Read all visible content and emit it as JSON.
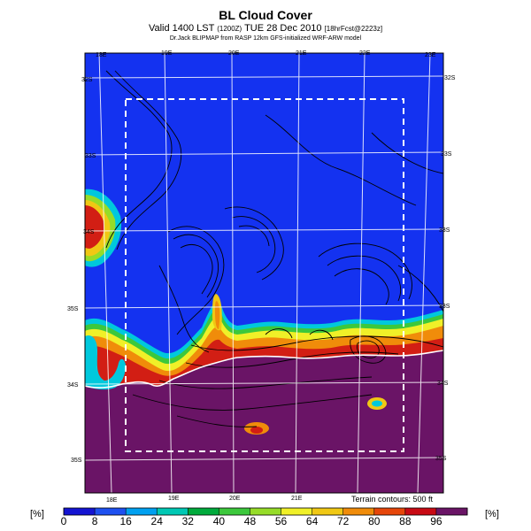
{
  "title": "BL Cloud Cover",
  "subtitle": {
    "prefix": "Valid 1400 LST ",
    "utc": "(1200Z)",
    "date": " TUE 28 Dec 2010 ",
    "forecast": "[18hrFcst@2223z]"
  },
  "credit": "Dr.Jack BLIPMAP from RASP 12km GFS-initialized WRF-ARW model",
  "map": {
    "lon_labels_top": [
      "18E",
      "19E",
      "20E",
      "21E",
      "22E",
      "23E"
    ],
    "lon_labels_bottom": [
      "18E",
      "19E",
      "20E",
      "21E"
    ],
    "lat_labels_left": [
      "32S",
      "33S",
      "34S",
      "35S",
      "34S",
      "35S"
    ],
    "lat_labels_right": [
      "32S",
      "33S",
      "33S",
      "33S",
      "34S",
      "35S"
    ],
    "contour_note": "Terrain contours: 500 ft",
    "colors": {
      "clear": "#1432f0",
      "overcast": "#6a1466",
      "outline": "#ffffff"
    }
  },
  "colorbar": {
    "unit": "[%]",
    "ticks": [
      "0",
      "8",
      "16",
      "24",
      "32",
      "40",
      "48",
      "56",
      "64",
      "72",
      "80",
      "88",
      "96"
    ],
    "colors": [
      "#1414d2",
      "#1e50f0",
      "#00a0f0",
      "#00c8b4",
      "#00aa3c",
      "#3cc83c",
      "#96dc28",
      "#f0f028",
      "#f0c814",
      "#f08c0a",
      "#e6460a",
      "#c80a14",
      "#6a1466"
    ]
  }
}
